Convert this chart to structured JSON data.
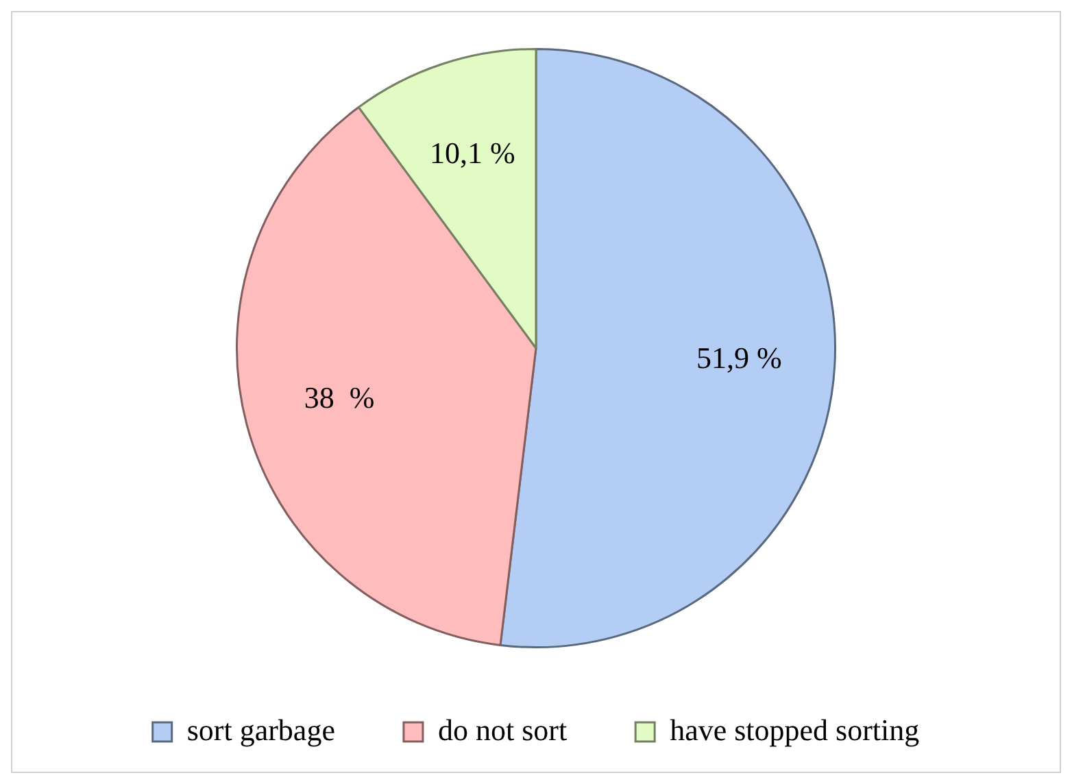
{
  "chart_data": {
    "type": "pie",
    "categories": [
      "sort garbage",
      "do not sort",
      "have stopped sorting"
    ],
    "values": [
      51.9,
      38,
      10.1
    ],
    "colors": [
      "#b4cdf5",
      "#ffbcbc",
      "#e2fbc4"
    ],
    "value_labels": [
      "51,9 %",
      "38  %",
      "10,1 %"
    ],
    "legend": "bottom"
  }
}
